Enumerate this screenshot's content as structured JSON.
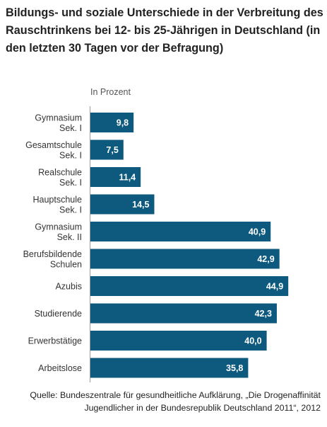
{
  "title": "Bildungs- und soziale Unterschiede in der Verbreitung des Rauschtrinkens bei 12- bis 25-Jährigen in Deutschland (in den letzten 30 Tagen vor der Befragung)",
  "source": "Quelle: Bundeszentrale für gesundheitliche Aufklärung, „Die Drogenaffinität Jugendlicher in der Bundesrepublik Deutschland 2011“, 2012",
  "chart_data": {
    "type": "bar",
    "orientation": "horizontal",
    "unit_label": "In Prozent",
    "categories": [
      [
        "Gymnasium",
        "Sek. I"
      ],
      [
        "Gesamtschule",
        "Sek. I"
      ],
      [
        "Realschule",
        "Sek. I"
      ],
      [
        "Hauptschule",
        "Sek. I"
      ],
      [
        "Gymnasium",
        "Sek. II"
      ],
      [
        "Berufsbildende",
        "Schulen"
      ],
      [
        "Azubis"
      ],
      [
        "Studierende"
      ],
      [
        "Erwerbstätige"
      ],
      [
        "Arbeitslose"
      ]
    ],
    "values": [
      9.8,
      7.5,
      11.4,
      14.5,
      40.9,
      42.9,
      44.9,
      42.3,
      40.0,
      35.8
    ],
    "value_labels": [
      "9,8",
      "7,5",
      "11,4",
      "14,5",
      "40,9",
      "42,9",
      "44,9",
      "42,3",
      "40,0",
      "35,8"
    ],
    "xlim": [
      0,
      50
    ],
    "bar_color": "#0d5a7e",
    "grid": false
  }
}
